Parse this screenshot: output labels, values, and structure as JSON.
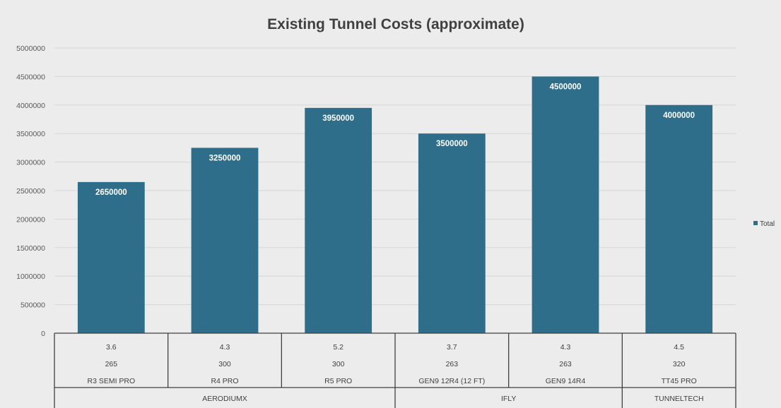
{
  "chart_data": {
    "type": "bar",
    "title": "Existing Tunnel Costs (approximate)",
    "xlabel": "",
    "ylabel": "",
    "ylim": [
      0,
      5000000
    ],
    "y_ticks": [
      0,
      500000,
      1000000,
      1500000,
      2000000,
      2500000,
      3000000,
      3500000,
      4000000,
      4500000,
      5000000
    ],
    "grid": true,
    "legend_position": "right",
    "bar_color": "#2f6e8a",
    "categories": [
      {
        "level1": "3.6",
        "level2": "265",
        "level3": "R3 SEMI PRO"
      },
      {
        "level1": "4.3",
        "level2": "300",
        "level3": "R4 PRO"
      },
      {
        "level1": "5.2",
        "level2": "300",
        "level3": "R5 PRO"
      },
      {
        "level1": "3.7",
        "level2": "263",
        "level3": "GEN9 12R4 (12 FT)"
      },
      {
        "level1": "4.3",
        "level2": "263",
        "level3": "GEN9 14R4"
      },
      {
        "level1": "4.5",
        "level2": "320",
        "level3": "TT45 PRO"
      }
    ],
    "groups": [
      {
        "label": "AERODIUMX",
        "span": 3
      },
      {
        "label": "IFLY",
        "span": 2
      },
      {
        "label": "TUNNELTECH",
        "span": 1
      }
    ],
    "series": [
      {
        "name": "Total",
        "values": [
          2650000,
          3250000,
          3950000,
          3500000,
          4500000,
          4000000
        ]
      }
    ]
  }
}
